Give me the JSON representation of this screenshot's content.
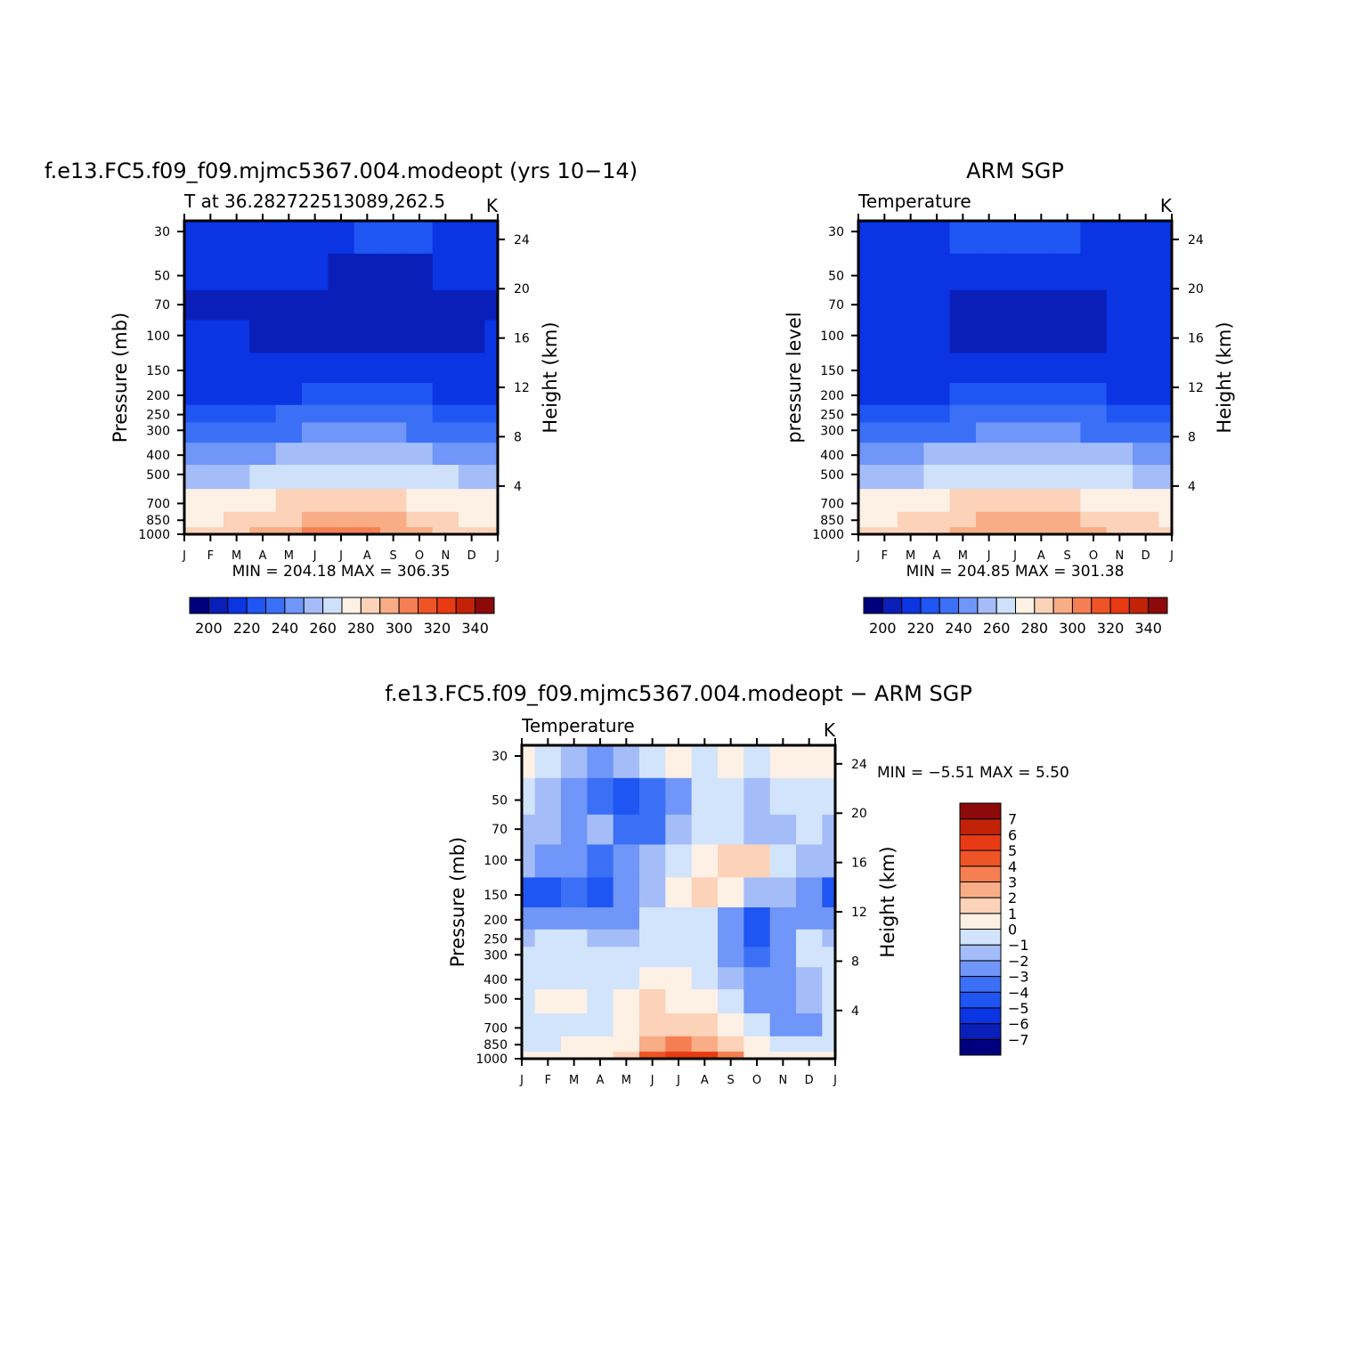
{
  "chart_data": [
    {
      "type": "heatmap",
      "title": "f.e13.FC5.f09_f09.mjmc5367.004.modeopt (yrs 10−14)",
      "subtitle_left": "T at 36.282722513089,262.5",
      "units": "K",
      "ylabel": "Pressure (mb)",
      "ylabel_right": "Height (km)",
      "stats": "MIN = 204.18 MAX = 306.35",
      "months": [
        "J",
        "F",
        "M",
        "A",
        "M",
        "J",
        "J",
        "A",
        "S",
        "O",
        "N",
        "D",
        "J"
      ],
      "pressure_ticks": [
        "30",
        "50",
        "70",
        "100",
        "150",
        "200",
        "250",
        "300",
        "400",
        "500",
        "700",
        "850",
        "1000"
      ],
      "height_ticks": [
        "24",
        "20",
        "16",
        "12",
        "8",
        "4"
      ],
      "colorbar": {
        "levels": [
          190,
          200,
          210,
          220,
          230,
          240,
          250,
          260,
          270,
          280,
          290,
          300,
          310,
          320,
          330,
          340
        ],
        "labels": [
          "200",
          "220",
          "240",
          "260",
          "280",
          "300",
          "320",
          "340"
        ],
        "colors": [
          "#00007f",
          "#0a1fb8",
          "#0b34e3",
          "#1f55f3",
          "#3b70f6",
          "#6f96f8",
          "#a4bdf9",
          "#cfe0fb",
          "#fdf0e4",
          "#fcd2b8",
          "#f9ad87",
          "#f57f52",
          "#ef5427",
          "#e83a13",
          "#c22207",
          "#8c0a0a"
        ]
      },
      "field": {
        "rows_pressure": [
          30,
          50,
          70,
          100,
          150,
          200,
          250,
          300,
          400,
          500,
          700,
          850,
          1000
        ],
        "values": [
          [
            219,
            219,
            219,
            219,
            219,
            219,
            219,
            220,
            220,
            220,
            219,
            219,
            219
          ],
          [
            213,
            212,
            212,
            211,
            211,
            210,
            209,
            208,
            208,
            208,
            210,
            212,
            213
          ],
          [
            208,
            207,
            207,
            206,
            206,
            205,
            205,
            205,
            205,
            205,
            206,
            207,
            208
          ],
          [
            211,
            210,
            210,
            208,
            205,
            205,
            205,
            205,
            205,
            206,
            207,
            209,
            211
          ],
          [
            217,
            216,
            216,
            214,
            212,
            211,
            211,
            211,
            211,
            212,
            213,
            215,
            217
          ],
          [
            219,
            219,
            219,
            219,
            219,
            220,
            221,
            221,
            221,
            220,
            219,
            219,
            219
          ],
          [
            227,
            227,
            228,
            229,
            231,
            233,
            234,
            234,
            233,
            231,
            229,
            228,
            227
          ],
          [
            233,
            233,
            234,
            236,
            238,
            240,
            241,
            241,
            240,
            238,
            236,
            234,
            233
          ],
          [
            246,
            246,
            247,
            249,
            252,
            255,
            256,
            256,
            254,
            251,
            249,
            247,
            246
          ],
          [
            256,
            257,
            258,
            261,
            264,
            267,
            268,
            268,
            266,
            262,
            260,
            258,
            256
          ],
          [
            270,
            271,
            273,
            276,
            280,
            283,
            285,
            285,
            282,
            278,
            275,
            272,
            270
          ],
          [
            278,
            279,
            281,
            285,
            289,
            292,
            294,
            293,
            290,
            285,
            282,
            279,
            278
          ],
          [
            283,
            284,
            287,
            291,
            296,
            300,
            303,
            302,
            298,
            292,
            288,
            285,
            283
          ]
        ]
      }
    },
    {
      "type": "heatmap",
      "title": "ARM SGP",
      "subtitle_left": "Temperature",
      "units": "K",
      "ylabel": "pressure level",
      "ylabel_right": "Height (km)",
      "stats": "MIN = 204.85 MAX = 301.38",
      "months": [
        "J",
        "F",
        "M",
        "A",
        "M",
        "J",
        "J",
        "A",
        "S",
        "O",
        "N",
        "D",
        "J"
      ],
      "pressure_ticks": [
        "30",
        "50",
        "70",
        "100",
        "150",
        "200",
        "250",
        "300",
        "400",
        "500",
        "700",
        "850",
        "1000"
      ],
      "height_ticks": [
        "24",
        "20",
        "16",
        "12",
        "8",
        "4"
      ],
      "colorbar": {
        "levels": [
          190,
          200,
          210,
          220,
          230,
          240,
          250,
          260,
          270,
          280,
          290,
          300,
          310,
          320,
          330,
          340
        ],
        "labels": [
          "200",
          "220",
          "240",
          "260",
          "280",
          "300",
          "320",
          "340"
        ],
        "colors": [
          "#00007f",
          "#0a1fb8",
          "#0b34e3",
          "#1f55f3",
          "#3b70f6",
          "#6f96f8",
          "#a4bdf9",
          "#cfe0fb",
          "#fdf0e4",
          "#fcd2b8",
          "#f9ad87",
          "#f57f52",
          "#ef5427",
          "#e83a13",
          "#c22207",
          "#8c0a0a"
        ]
      },
      "field": {
        "rows_pressure": [
          30,
          50,
          70,
          100,
          150,
          200,
          250,
          300,
          400,
          500,
          700,
          850,
          1000
        ],
        "values": [
          [
            219,
            219,
            219,
            219,
            221,
            222,
            222,
            222,
            220,
            219,
            219,
            219,
            219
          ],
          [
            214,
            214,
            213,
            213,
            213,
            212,
            212,
            212,
            212,
            213,
            213,
            214,
            214
          ],
          [
            210,
            210,
            210,
            210,
            209,
            209,
            209,
            209,
            209,
            209,
            210,
            210,
            210
          ],
          [
            211,
            212,
            212,
            210,
            208,
            207,
            207,
            207,
            207,
            208,
            210,
            211,
            211
          ],
          [
            216,
            216,
            216,
            215,
            213,
            211,
            211,
            211,
            211,
            213,
            215,
            216,
            216
          ],
          [
            218,
            219,
            219,
            219,
            220,
            221,
            221,
            221,
            221,
            220,
            219,
            219,
            218
          ],
          [
            227,
            227,
            228,
            229,
            231,
            233,
            234,
            234,
            233,
            231,
            229,
            228,
            227
          ],
          [
            234,
            234,
            235,
            237,
            239,
            241,
            242,
            242,
            241,
            239,
            237,
            235,
            234
          ],
          [
            247,
            247,
            248,
            250,
            253,
            255,
            256,
            256,
            255,
            252,
            250,
            248,
            247
          ],
          [
            257,
            258,
            259,
            262,
            265,
            268,
            269,
            269,
            267,
            263,
            261,
            259,
            257
          ],
          [
            271,
            272,
            273,
            276,
            280,
            283,
            284,
            284,
            282,
            278,
            275,
            273,
            271
          ],
          [
            278,
            279,
            281,
            284,
            288,
            291,
            292,
            292,
            290,
            286,
            282,
            280,
            278
          ],
          [
            282,
            283,
            286,
            289,
            293,
            296,
            298,
            298,
            295,
            291,
            287,
            284,
            282
          ]
        ]
      }
    },
    {
      "type": "heatmap",
      "title": "f.e13.FC5.f09_f09.mjmc5367.004.modeopt − ARM SGP",
      "subtitle_left": "Temperature",
      "units": "K",
      "ylabel": "Pressure (mb)",
      "ylabel_right": "Height (km)",
      "stats": "MIN = −5.51 MAX = 5.50",
      "months": [
        "J",
        "F",
        "M",
        "A",
        "M",
        "J",
        "J",
        "A",
        "S",
        "O",
        "N",
        "D",
        "J"
      ],
      "pressure_ticks": [
        "30",
        "50",
        "70",
        "100",
        "150",
        "200",
        "250",
        "300",
        "400",
        "500",
        "700",
        "850",
        "1000"
      ],
      "height_ticks": [
        "24",
        "20",
        "16",
        "12",
        "8",
        "4"
      ],
      "colorbar": {
        "levels": [
          -8,
          -7,
          -6,
          -5,
          -4,
          -3,
          -2,
          -1,
          0,
          1,
          2,
          3,
          4,
          5,
          6,
          7,
          8
        ],
        "labels": [
          "7",
          "6",
          "5",
          "4",
          "3",
          "2",
          "1",
          "0",
          "−1",
          "−2",
          "−3",
          "−4",
          "−5",
          "−6",
          "−7"
        ],
        "colors": [
          "#00007f",
          "#0a1fb8",
          "#0b34e3",
          "#1f55f3",
          "#3b70f6",
          "#6f96f8",
          "#a4bdf9",
          "#d2e4fb",
          "#fdf0e4",
          "#fcd2b8",
          "#f9ad87",
          "#f57f52",
          "#ef5427",
          "#e83a13",
          "#c22207",
          "#8c0a0a"
        ]
      },
      "field": {
        "rows_pressure": [
          30,
          50,
          70,
          100,
          150,
          200,
          250,
          300,
          400,
          500,
          700,
          850,
          1000
        ],
        "values": [
          [
            0.5,
            -0.5,
            -2.0,
            -2.5,
            -2.0,
            -1.0,
            0.2,
            -0.5,
            0.3,
            -0.3,
            0.5,
            0.8,
            0.5
          ],
          [
            -1.0,
            -1.5,
            -2.5,
            -3.5,
            -4.5,
            -4.0,
            -2.5,
            -1.0,
            -0.8,
            -1.5,
            -1.0,
            -0.5,
            -1.0
          ],
          [
            -1.5,
            -2.0,
            -3.0,
            -2.0,
            -3.5,
            -3.5,
            -2.0,
            -0.5,
            -0.8,
            -1.5,
            -1.2,
            -1.0,
            -1.5
          ],
          [
            -2.0,
            -2.5,
            -3.0,
            -3.5,
            -3.0,
            -2.0,
            -0.5,
            0.8,
            1.0,
            1.5,
            -1.0,
            -1.5,
            -2.0
          ],
          [
            -4.5,
            -5.0,
            -3.5,
            -5.0,
            -3.0,
            -1.5,
            0.5,
            1.8,
            0.5,
            -1.5,
            -2.0,
            -2.5,
            -4.5
          ],
          [
            -3.0,
            -3.0,
            -2.5,
            -3.0,
            -2.5,
            -0.8,
            -0.5,
            -0.5,
            -3.0,
            -4.5,
            -3.0,
            -2.5,
            -3.0
          ],
          [
            -1.5,
            -0.8,
            -1.0,
            -2.0,
            -1.5,
            -0.8,
            -0.5,
            -0.8,
            -3.0,
            -4.5,
            -3.0,
            -1.0,
            -1.5
          ],
          [
            -0.8,
            -0.5,
            -0.5,
            -0.8,
            -0.8,
            -0.5,
            -0.6,
            -1.0,
            -3.0,
            -3.5,
            -2.5,
            -1.0,
            -0.8
          ],
          [
            -0.5,
            -0.5,
            -0.5,
            -0.5,
            -0.6,
            0.3,
            0.2,
            -0.5,
            -2.0,
            -3.0,
            -2.5,
            -1.5,
            -0.5
          ],
          [
            -0.5,
            0.5,
            0.8,
            -0.5,
            0.5,
            1.0,
            0.8,
            0.5,
            -1.0,
            -2.5,
            -3.0,
            -2.0,
            -0.5
          ],
          [
            -0.8,
            -0.5,
            -0.5,
            -0.5,
            0.5,
            1.5,
            1.5,
            1.0,
            0.5,
            -1.0,
            -2.5,
            -3.0,
            -0.8
          ],
          [
            -0.5,
            -0.3,
            0.2,
            0.5,
            0.5,
            2.5,
            3.0,
            2.5,
            1.0,
            0.2,
            -0.5,
            -0.5,
            -0.5
          ],
          [
            0.3,
            0.5,
            0.6,
            0.5,
            1.5,
            4.5,
            5.5,
            5.0,
            3.0,
            0.5,
            0.2,
            0.8,
            0.3
          ]
        ]
      }
    }
  ]
}
